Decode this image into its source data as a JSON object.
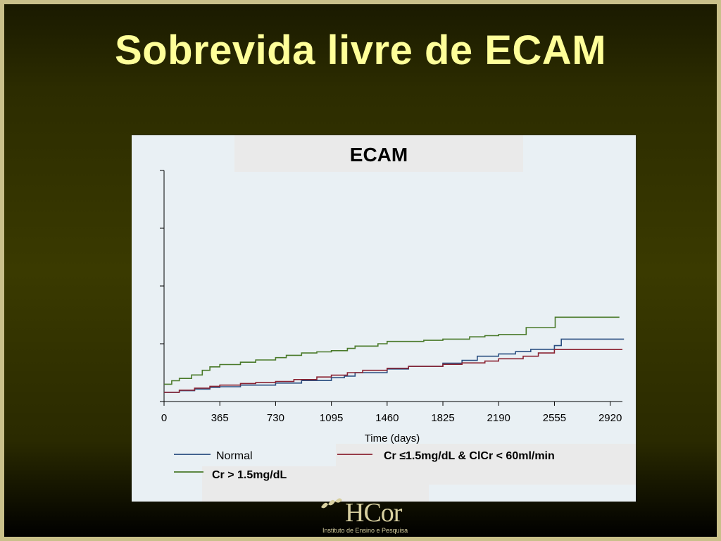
{
  "slide": {
    "title": "Sobrevida livre de ECAM"
  },
  "chart_data": {
    "type": "line",
    "title": "ECAM",
    "xlabel": "Time (days)",
    "ylabel": "",
    "xlim": [
      0,
      3000
    ],
    "ylim": [
      0,
      1
    ],
    "x_ticks": [
      0,
      365,
      730,
      1095,
      1460,
      1825,
      2190,
      2555,
      2920
    ],
    "y_tick_count": 5,
    "grid": false,
    "legend_position": "bottom",
    "colors": {
      "Normal": "#2b4f81",
      "Cr ≤1.5mg/dL & ClCr < 60ml/min": "#8b2332",
      "Cr > 1.5mg/dL": "#4a7a2a"
    },
    "series": [
      {
        "name": "Normal",
        "x": [
          0,
          100,
          200,
          300,
          365,
          500,
          730,
          900,
          1095,
          1180,
          1250,
          1460,
          1600,
          1825,
          1950,
          2050,
          2190,
          2300,
          2400,
          2555,
          2560,
          2600,
          3010
        ],
        "y": [
          0.04,
          0.047,
          0.054,
          0.061,
          0.064,
          0.071,
          0.08,
          0.091,
          0.103,
          0.11,
          0.125,
          0.141,
          0.152,
          0.166,
          0.178,
          0.196,
          0.206,
          0.216,
          0.226,
          0.242,
          0.242,
          0.27,
          0.27
        ]
      },
      {
        "name": "Cr ≤1.5mg/dL & ClCr < 60ml/min",
        "x": [
          0,
          100,
          200,
          300,
          365,
          500,
          600,
          730,
          850,
          1000,
          1095,
          1200,
          1300,
          1460,
          1600,
          1825,
          1950,
          2100,
          2190,
          2350,
          2450,
          2555,
          2600,
          3000
        ],
        "y": [
          0.04,
          0.049,
          0.058,
          0.066,
          0.071,
          0.078,
          0.082,
          0.087,
          0.095,
          0.106,
          0.114,
          0.125,
          0.135,
          0.144,
          0.152,
          0.161,
          0.167,
          0.175,
          0.185,
          0.196,
          0.21,
          0.225,
          0.225,
          0.225
        ]
      },
      {
        "name": "Cr > 1.5mg/dL",
        "x": [
          0,
          50,
          100,
          180,
          250,
          300,
          365,
          500,
          600,
          730,
          800,
          900,
          1000,
          1095,
          1200,
          1250,
          1400,
          1460,
          1600,
          1700,
          1825,
          1950,
          2000,
          2100,
          2190,
          2350,
          2370,
          2555,
          2560,
          2980
        ],
        "y": [
          0.075,
          0.09,
          0.1,
          0.115,
          0.135,
          0.15,
          0.16,
          0.17,
          0.18,
          0.19,
          0.2,
          0.21,
          0.215,
          0.22,
          0.23,
          0.24,
          0.25,
          0.26,
          0.26,
          0.265,
          0.27,
          0.27,
          0.28,
          0.285,
          0.29,
          0.29,
          0.32,
          0.32,
          0.365,
          0.365
        ]
      }
    ]
  },
  "legend": [
    {
      "label": "Normal",
      "color": "#2b4f81"
    },
    {
      "label": "Cr ≤1.5mg/dL & ClCr < 60ml/min",
      "color": "#8b2332"
    },
    {
      "label": "Cr > 1.5mg/dL",
      "color": "#4a7a2a"
    }
  ],
  "logo": {
    "name": "HCor",
    "subtitle": "Instituto de Ensino e Pesquisa"
  }
}
